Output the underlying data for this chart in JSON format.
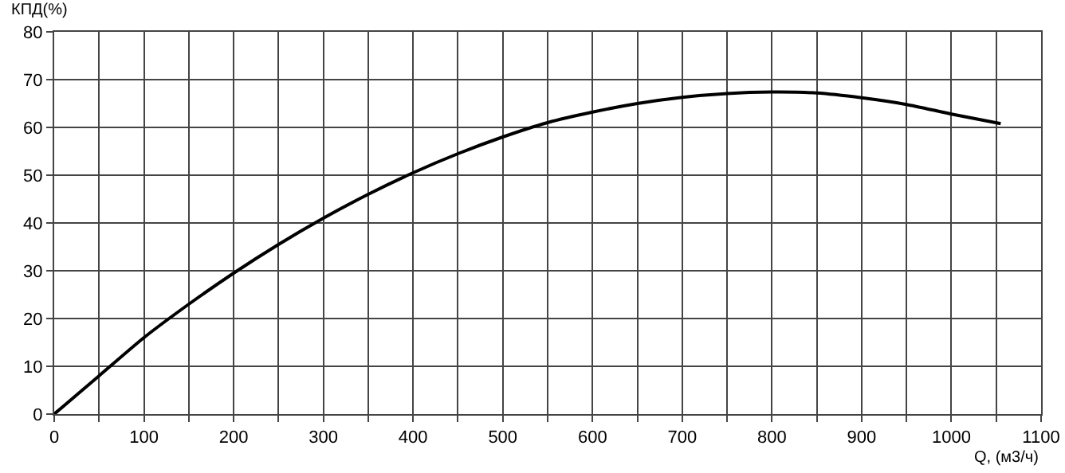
{
  "chart_data": {
    "type": "line",
    "xlabel": "Q, (м3/ч)",
    "ylabel": "КПД(%)",
    "x": [
      0,
      50,
      100,
      150,
      200,
      250,
      300,
      350,
      400,
      450,
      500,
      550,
      600,
      650,
      700,
      750,
      800,
      850,
      900,
      950,
      1000,
      1055
    ],
    "series": [
      {
        "color": "#000000",
        "values": [
          0,
          8,
          16,
          23,
          29.5,
          35.5,
          41,
          46,
          50.5,
          54.5,
          58,
          61,
          63.2,
          65,
          66.3,
          67.1,
          67.4,
          67.2,
          66.2,
          64.8,
          62.8,
          60.8
        ]
      }
    ],
    "xlim": [
      0,
      1100
    ],
    "xticks": [
      0,
      {
        "value": 50,
        "label": null
      },
      100,
      {
        "value": 150,
        "label": null
      },
      200,
      {
        "value": 250,
        "label": null
      },
      300,
      {
        "value": 350,
        "label": null
      },
      400,
      {
        "value": 450,
        "label": null
      },
      500,
      {
        "value": 550,
        "label": null
      },
      600,
      {
        "value": 650,
        "label": null
      },
      700,
      {
        "value": 750,
        "label": null
      },
      800,
      {
        "value": 850,
        "label": null
      },
      900,
      {
        "value": 950,
        "label": null
      },
      1000,
      {
        "value": 1050,
        "label": null
      },
      1100
    ],
    "ylim": [
      0,
      80
    ],
    "yticks": [
      0,
      10,
      20,
      30,
      40,
      50,
      60,
      70,
      80
    ],
    "grid": true,
    "marker": "none",
    "line_style": "solid"
  }
}
